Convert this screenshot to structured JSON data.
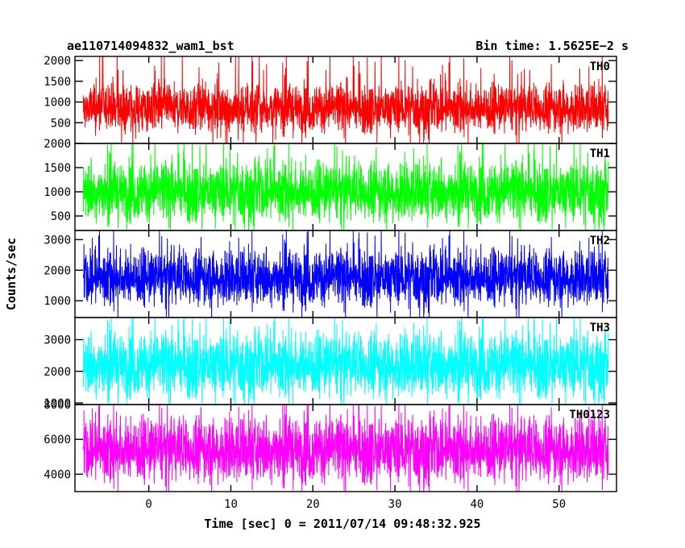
{
  "chart_data": {
    "type": "line",
    "title": "ae110714094832_wam1_bst",
    "subtitle": "Bin time: 1.5625E−2 s",
    "xlabel": "Time [sec] 0 = 2011/07/14 09:48:32.925",
    "ylabel": "Counts/sec",
    "xlim": [
      -9,
      57
    ],
    "x_range": [
      -8,
      56
    ],
    "x_ticks": [
      0,
      10,
      20,
      30,
      40,
      50
    ],
    "x_tick_labels": [
      "0",
      "10",
      "20",
      "30",
      "40",
      "50"
    ],
    "grid": false,
    "legend": "none",
    "panels": [
      {
        "name": "TH0",
        "color": "#ff0000",
        "ylim": [
          0,
          2100
        ],
        "y_ticks": [
          500,
          1000,
          1500,
          2000
        ],
        "y_tick_labels": [
          "500",
          "1000",
          "1500",
          "2000"
        ],
        "mean": 850,
        "typical_low": 300,
        "typical_high": 1450,
        "peak_max": 2050
      },
      {
        "name": "TH1",
        "color": "#00ff00",
        "ylim": [
          200,
          2000
        ],
        "y_ticks": [
          500,
          1000,
          1500,
          2000
        ],
        "y_tick_labels": [
          "500",
          "1000",
          "1500",
          "2000"
        ],
        "mean": 1000,
        "typical_low": 400,
        "typical_high": 1600,
        "peak_max": 2000
      },
      {
        "name": "TH2",
        "color": "#0000ff",
        "ylim": [
          450,
          3300
        ],
        "y_ticks": [
          1000,
          2000,
          3000
        ],
        "y_tick_labels": [
          "1000",
          "2000",
          "3000"
        ],
        "mean": 1750,
        "typical_low": 900,
        "typical_high": 2700,
        "peak_max": 3200
      },
      {
        "name": "TH3",
        "color": "#00ffff",
        "ylim": [
          950,
          3700
        ],
        "y_ticks": [
          1000,
          2000,
          3000
        ],
        "y_tick_labels": [
          "1000",
          "2000",
          "3000"
        ],
        "mean": 2200,
        "typical_low": 1200,
        "typical_high": 3200,
        "peak_max": 3600
      },
      {
        "name": "TH0123",
        "color": "#ff00ff",
        "ylim": [
          3000,
          8000
        ],
        "y_ticks": [
          4000,
          6000,
          8000
        ],
        "y_tick_labels": [
          "4000",
          "6000",
          "8000"
        ],
        "mean": 5400,
        "typical_low": 3600,
        "typical_high": 7300,
        "peak_max": 8000
      }
    ]
  }
}
